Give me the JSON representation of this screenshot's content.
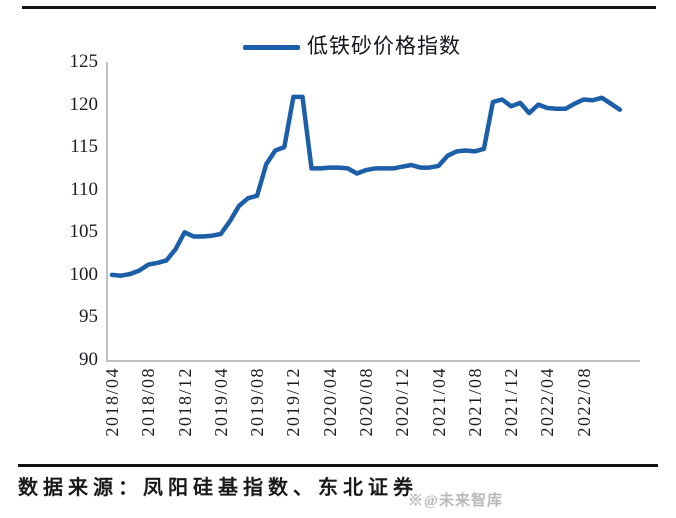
{
  "chart_data": {
    "type": "line",
    "title": "",
    "grid": false,
    "legend_position": "top-center",
    "line_color": "#1C5FA8",
    "ylim": [
      90,
      125
    ],
    "y_ticks": [
      125,
      120,
      115,
      110,
      105,
      100,
      95,
      90
    ],
    "x_tick_labels": [
      "2018/04",
      "2018/08",
      "2018/12",
      "2019/04",
      "2019/08",
      "2019/12",
      "2020/04",
      "2020/08",
      "2020/12",
      "2021/04",
      "2021/08",
      "2021/12",
      "2022/04",
      "2022/08"
    ],
    "x": [
      "2018/04",
      "2018/05",
      "2018/06",
      "2018/07",
      "2018/08",
      "2018/09",
      "2018/10",
      "2018/11",
      "2018/12",
      "2019/01",
      "2019/02",
      "2019/03",
      "2019/04",
      "2019/05",
      "2019/06",
      "2019/07",
      "2019/08",
      "2019/09",
      "2019/10",
      "2019/11",
      "2019/12",
      "2020/01",
      "2020/02",
      "2020/03",
      "2020/04",
      "2020/05",
      "2020/06",
      "2020/07",
      "2020/08",
      "2020/09",
      "2020/10",
      "2020/11",
      "2020/12",
      "2021/01",
      "2021/02",
      "2021/03",
      "2021/04",
      "2021/05",
      "2021/06",
      "2021/07",
      "2021/08",
      "2021/09",
      "2021/10",
      "2021/11",
      "2021/12",
      "2022/01",
      "2022/02",
      "2022/03",
      "2022/04",
      "2022/05",
      "2022/06",
      "2022/07",
      "2022/08",
      "2022/09",
      "2022/10",
      "2022/11",
      "2022/12"
    ],
    "series": [
      {
        "name": "低铁砂价格指数",
        "values": [
          100.0,
          99.9,
          100.1,
          100.5,
          101.2,
          101.4,
          101.7,
          103.0,
          105.0,
          104.5,
          104.5,
          104.6,
          104.8,
          106.3,
          108.1,
          109.0,
          109.3,
          113.0,
          114.6,
          115.0,
          120.9,
          120.9,
          112.5,
          112.5,
          112.6,
          112.6,
          112.5,
          111.9,
          112.3,
          112.5,
          112.5,
          112.5,
          112.7,
          112.9,
          112.6,
          112.6,
          112.8,
          114.0,
          114.5,
          114.6,
          114.5,
          114.8,
          120.3,
          120.6,
          119.8,
          120.2,
          119.0,
          120.0,
          119.6,
          119.5,
          119.5,
          120.1,
          120.6,
          120.5,
          120.8,
          120.1,
          119.4
        ]
      }
    ]
  },
  "footer": {
    "source": "数据来源：凤阳硅基指数、东北证券",
    "watermark": "※@未来智库"
  }
}
